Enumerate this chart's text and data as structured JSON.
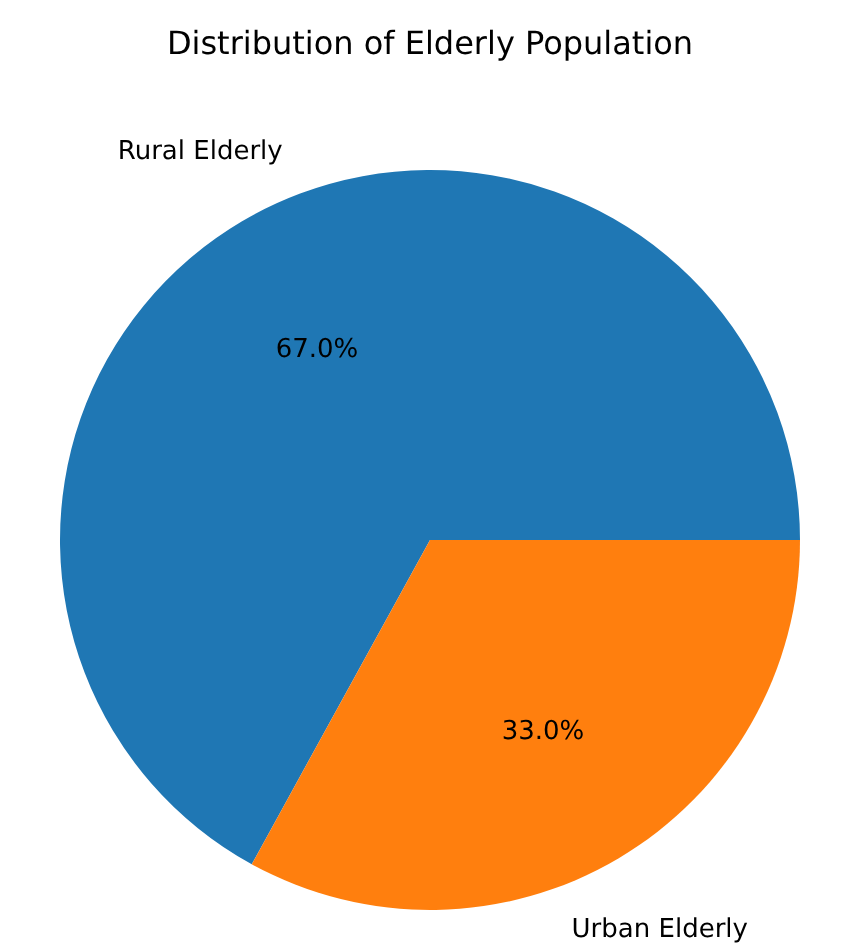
{
  "chart_data": {
    "type": "pie",
    "title": "Distribution of Elderly Population",
    "categories": [
      "Rural Elderly",
      "Urban Elderly"
    ],
    "values": [
      67,
      33
    ],
    "colors": [
      "#1f77b4",
      "#ff7f0e"
    ],
    "value_labels": [
      "67.0%",
      "33.0%"
    ],
    "legend": false
  }
}
